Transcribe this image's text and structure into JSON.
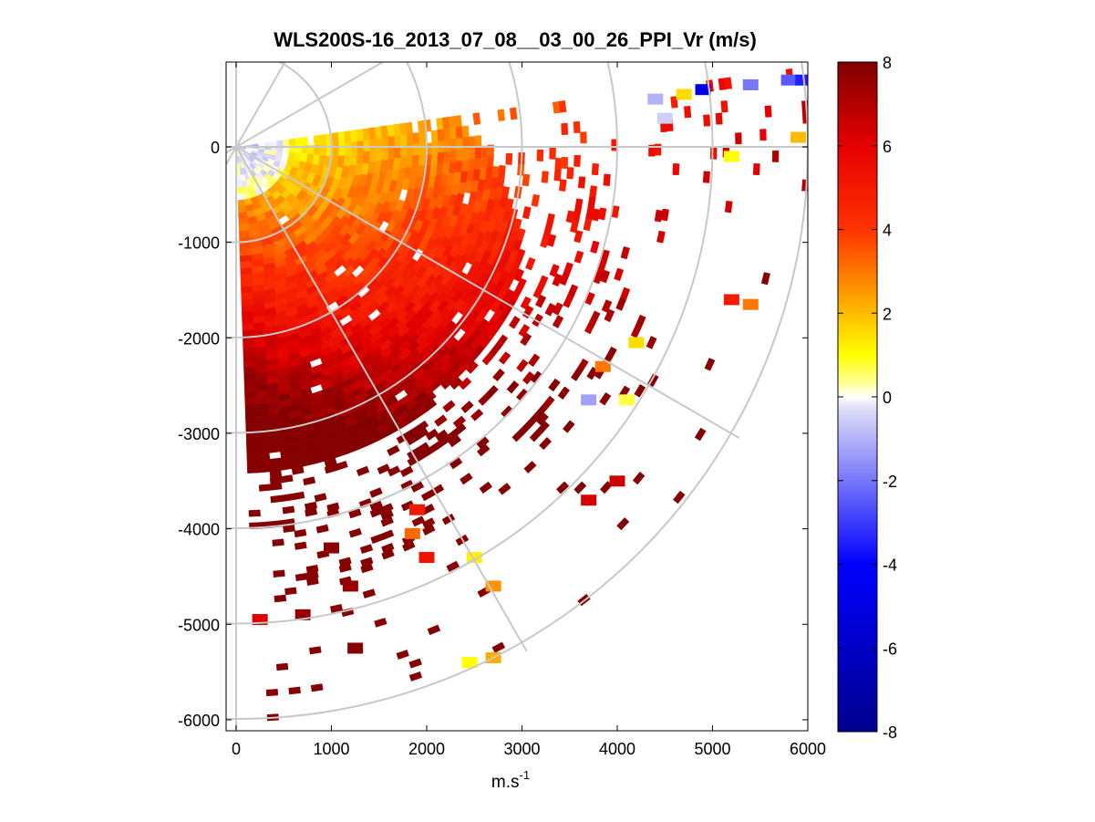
{
  "chart_data": {
    "type": "heatmap",
    "title": "WLS200S-16_2013_07_08__03_00_26_PPI_Vr (m/s)",
    "xlabel": "m.s",
    "xlabel_sup": "-1",
    "ylabel": "",
    "xlim": [
      -100,
      6000
    ],
    "ylim": [
      -6100,
      900
    ],
    "xticks": [
      0,
      1000,
      2000,
      3000,
      4000,
      5000,
      6000
    ],
    "xtick_labels": [
      "0",
      "1000",
      "2000",
      "3000",
      "4000",
      "5000",
      "6000"
    ],
    "yticks": [
      0,
      -1000,
      -2000,
      -3000,
      -4000,
      -5000,
      -6000
    ],
    "ytick_labels": [
      "0",
      "-1000",
      "-2000",
      "-3000",
      "-4000",
      "-5000",
      "-6000"
    ],
    "polar_grid": {
      "ranges_m": [
        1000,
        2000,
        3000,
        4000,
        5000,
        6000
      ],
      "azimuths_deg": [
        90,
        120,
        150,
        180,
        210,
        240,
        270
      ]
    },
    "scan": {
      "azimuth_min_deg": 82,
      "azimuth_max_deg": 178,
      "max_range_m": 6000,
      "near_range_negative_values_m_s": -0.8,
      "far_range_values_m_s": 7.5
    },
    "colorbar": {
      "range": [
        -8,
        8
      ],
      "ticks": [
        8,
        6,
        4,
        2,
        0,
        -2,
        -4,
        -6,
        -8
      ],
      "tick_labels": [
        "8",
        "6",
        "4",
        "2",
        "0",
        "-2",
        "-4",
        "-6",
        "-8"
      ],
      "stops": [
        {
          "v": -8,
          "color": "#00008f"
        },
        {
          "v": -4,
          "color": "#0000ff"
        },
        {
          "v": -0.3,
          "color": "#dcdcf7"
        },
        {
          "v": 0,
          "color": "#ffffff"
        },
        {
          "v": 0.3,
          "color": "#ffff9e"
        },
        {
          "v": 1,
          "color": "#ffff00"
        },
        {
          "v": 2.5,
          "color": "#ff9900"
        },
        {
          "v": 4,
          "color": "#ff3300"
        },
        {
          "v": 6,
          "color": "#e60000"
        },
        {
          "v": 8,
          "color": "#800000"
        }
      ]
    },
    "sample_cells": [
      {
        "x": 1000,
        "y": -4200,
        "v": 7.8
      },
      {
        "x": 1200,
        "y": -4600,
        "v": 7.5
      },
      {
        "x": 1250,
        "y": -5250,
        "v": 7.9
      },
      {
        "x": 700,
        "y": -4900,
        "v": 7.6
      },
      {
        "x": 250,
        "y": -4950,
        "v": 6.2
      },
      {
        "x": 1900,
        "y": -3800,
        "v": 5.0
      },
      {
        "x": 2000,
        "y": -4300,
        "v": 5.2
      },
      {
        "x": 1850,
        "y": -4050,
        "v": 3.2
      },
      {
        "x": 2500,
        "y": -4300,
        "v": 1.2
      },
      {
        "x": 2700,
        "y": -4600,
        "v": 2.6
      },
      {
        "x": 2450,
        "y": -5400,
        "v": 1.0
      },
      {
        "x": 2700,
        "y": -5350,
        "v": 2.2
      },
      {
        "x": 3700,
        "y": -3700,
        "v": 6.3
      },
      {
        "x": 4000,
        "y": -3500,
        "v": 6.5
      },
      {
        "x": 3700,
        "y": -2650,
        "v": -1.3
      },
      {
        "x": 4100,
        "y": -2650,
        "v": 0.7
      },
      {
        "x": 5200,
        "y": -1600,
        "v": 5.0
      },
      {
        "x": 5400,
        "y": -1650,
        "v": 3.0
      },
      {
        "x": 5200,
        "y": -100,
        "v": 1.0
      },
      {
        "x": 4900,
        "y": 600,
        "v": -5.0
      },
      {
        "x": 5400,
        "y": 650,
        "v": -2.0
      },
      {
        "x": 5800,
        "y": 700,
        "v": -2.5
      },
      {
        "x": 5950,
        "y": 700,
        "v": -3.5
      },
      {
        "x": 4400,
        "y": 500,
        "v": -1.0
      },
      {
        "x": 4700,
        "y": 550,
        "v": 1.5
      },
      {
        "x": 5900,
        "y": 100,
        "v": 2.0
      },
      {
        "x": 4500,
        "y": 300,
        "v": -0.5
      },
      {
        "x": 3850,
        "y": -2300,
        "v": 3.0
      },
      {
        "x": 4200,
        "y": -2050,
        "v": 1.5
      }
    ]
  }
}
